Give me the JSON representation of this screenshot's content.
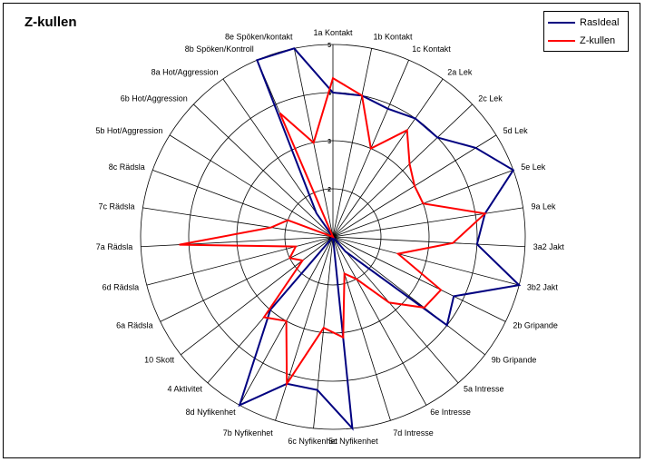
{
  "chart_data": {
    "type": "radar",
    "title": "Z-kullen",
    "categories": [
      "1a Kontakt",
      "1b Kontakt",
      "1c Kontakt",
      "2a Lek",
      "2c Lek",
      "5d Lek",
      "5e Lek",
      "9a Lek",
      "3a2 Jakt",
      "3b2 Jakt",
      "2b Gripande",
      "9b Gripande",
      "5a Intresse",
      "6e Intresse",
      "7d Intresse",
      "5c Nyfikenhet",
      "6c Nyfikenhet",
      "7b Nyfikenhet",
      "8d Nyfikenhet",
      "4 Aktivitet",
      "10 Skott",
      "6a Rädsla",
      "6d Rädsla",
      "7a Rädsla",
      "7c Rädsla",
      "8c Rädsla",
      "5b Hot/Aggression",
      "6b Hot/Aggression",
      "8a Hot/Aggression",
      "8b Spöken/Kontroll",
      "8e Spöken/kontakt"
    ],
    "rlim": [
      1,
      5
    ],
    "ticks": [
      1,
      2,
      3,
      4,
      5
    ],
    "grid": true,
    "legend_position": "top-right",
    "series": [
      {
        "name": "RasIdeal",
        "color": "#000080",
        "values": [
          4,
          4,
          3.9,
          4,
          4,
          4.5,
          5,
          4.2,
          4,
          5,
          3.8,
          4,
          1.4,
          1,
          1,
          5,
          4.2,
          4.2,
          5,
          3,
          1,
          1,
          1,
          1,
          1,
          1,
          1,
          1,
          1.6,
          5,
          5
        ]
      },
      {
        "name": "Z-kullen",
        "color": "#ff0000",
        "values": [
          4.3,
          4,
          3,
          3.7,
          3.2,
          3,
          3,
          4.2,
          3.5,
          2.4,
          3.5,
          3.4,
          2.8,
          2,
          1.8,
          3.1,
          2.9,
          4.2,
          3,
          3.2,
          1.8,
          2,
          1.8,
          4.2,
          2.3,
          2,
          1,
          1,
          1,
          3.8,
          3
        ]
      }
    ]
  }
}
